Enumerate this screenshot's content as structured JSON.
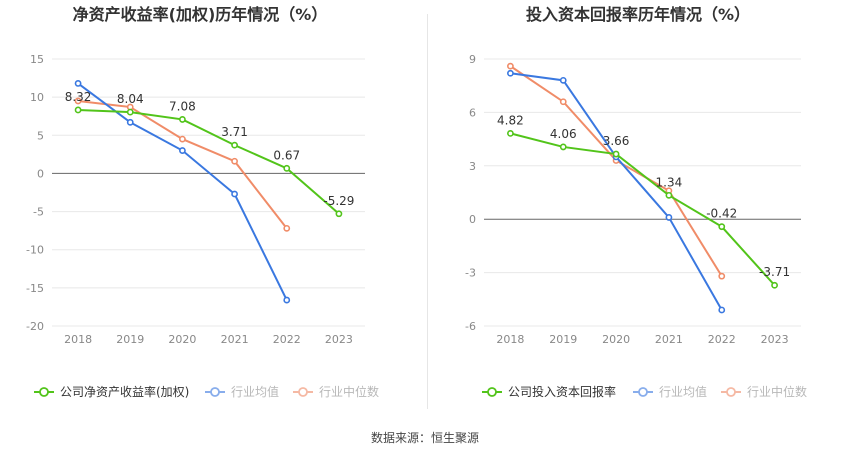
{
  "source_text": "数据来源：恒生聚源",
  "colors": {
    "company": "#52c41a",
    "avg": "#3a78e0",
    "median": "#f08c68"
  },
  "legend_labels": {
    "avg": "行业均值",
    "median": "行业中位数"
  },
  "chart_data": [
    {
      "type": "line",
      "title": "净资产收益率(加权)历年情况（%）",
      "categories": [
        "2018",
        "2019",
        "2020",
        "2021",
        "2022",
        "2023"
      ],
      "ylim": [
        -20,
        15
      ],
      "yticks": [
        15,
        10,
        5,
        0,
        -5,
        -10,
        -15,
        -20
      ],
      "grid": true,
      "legend_position": "bottom",
      "series": [
        {
          "name": "公司净资产收益率(加权)",
          "key": "company",
          "values": [
            8.32,
            8.04,
            7.08,
            3.71,
            0.67,
            -5.29
          ],
          "labels": [
            "8.32",
            "8.04",
            "7.08",
            "3.71",
            "0.67",
            "-5.29"
          ]
        },
        {
          "name": "行业均值",
          "key": "avg",
          "values": [
            11.8,
            6.7,
            3.0,
            -2.7,
            -16.6,
            null
          ]
        },
        {
          "name": "行业中位数",
          "key": "median",
          "values": [
            9.5,
            8.7,
            4.5,
            1.6,
            -7.2,
            null
          ]
        }
      ]
    },
    {
      "type": "line",
      "title": "投入资本回报率历年情况（%）",
      "categories": [
        "2018",
        "2019",
        "2020",
        "2021",
        "2022",
        "2023"
      ],
      "ylim": [
        -6,
        9
      ],
      "yticks": [
        9,
        6,
        3,
        0,
        -3,
        -6
      ],
      "grid": true,
      "legend_position": "bottom",
      "series": [
        {
          "name": "公司投入资本回报率",
          "key": "company",
          "values": [
            4.82,
            4.06,
            3.66,
            1.34,
            -0.42,
            -3.71
          ],
          "labels": [
            "4.82",
            "4.06",
            "3.66",
            "1.34",
            "-0.42",
            "-3.71"
          ]
        },
        {
          "name": "行业均值",
          "key": "avg",
          "values": [
            8.2,
            7.8,
            3.5,
            0.1,
            -5.1,
            null
          ]
        },
        {
          "name": "行业中位数",
          "key": "median",
          "values": [
            8.6,
            6.6,
            3.3,
            1.6,
            -3.2,
            null
          ]
        }
      ]
    }
  ]
}
